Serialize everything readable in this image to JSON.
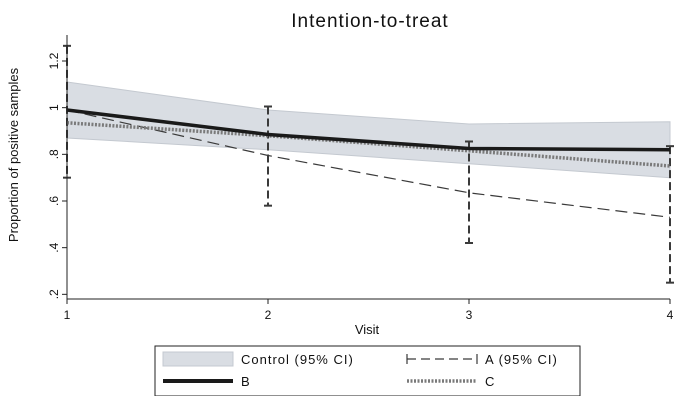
{
  "chart_data": {
    "type": "line",
    "title": "Intention-to-treat",
    "xlabel": "Visit",
    "ylabel": "Proportion of positive samples",
    "x": [
      1,
      2,
      3,
      4
    ],
    "xlim": [
      1,
      4
    ],
    "ylim": [
      0.18,
      1.29
    ],
    "x_ticks": [
      "1",
      "2",
      "3",
      "4"
    ],
    "y_ticks": [
      {
        "value": 0.2,
        "label": ".2"
      },
      {
        "value": 0.4,
        "label": ".4"
      },
      {
        "value": 0.6,
        "label": ".6"
      },
      {
        "value": 0.8,
        "label": ".8"
      },
      {
        "value": 1.0,
        "label": "1"
      },
      {
        "value": 1.2,
        "label": "1.2"
      }
    ],
    "grid": false,
    "legend_position": "bottom",
    "series": [
      {
        "name": "Control (95% CI)",
        "style": "band",
        "values": [
          0.935,
          0.875,
          0.815,
          0.75
        ],
        "lower": [
          0.87,
          0.82,
          0.76,
          0.7
        ],
        "upper": [
          1.11,
          0.99,
          0.93,
          0.94
        ]
      },
      {
        "name": "A (95% CI)",
        "style": "dashed-errorbar",
        "values": [
          0.99,
          0.795,
          0.635,
          0.53
        ],
        "lower": [
          0.7,
          0.58,
          0.42,
          0.25
        ],
        "upper": [
          1.265,
          1.005,
          0.855,
          0.835
        ]
      },
      {
        "name": "B",
        "style": "thick-line",
        "values": [
          0.99,
          0.885,
          0.825,
          0.82
        ]
      },
      {
        "name": "C",
        "style": "dotted-line",
        "values": [
          0.935,
          0.88,
          0.815,
          0.75
        ]
      }
    ],
    "legend_labels": [
      "Control (95% CI)",
      "A (95% CI)",
      "B",
      "C"
    ],
    "colors": {
      "band_fill": "#d9dde3",
      "band_edge": "#c4c9d0",
      "a_line": "#3a3a3a",
      "b_line": "#1a1a1a",
      "c_line": "#7a7a7a",
      "axis": "#222222"
    }
  }
}
